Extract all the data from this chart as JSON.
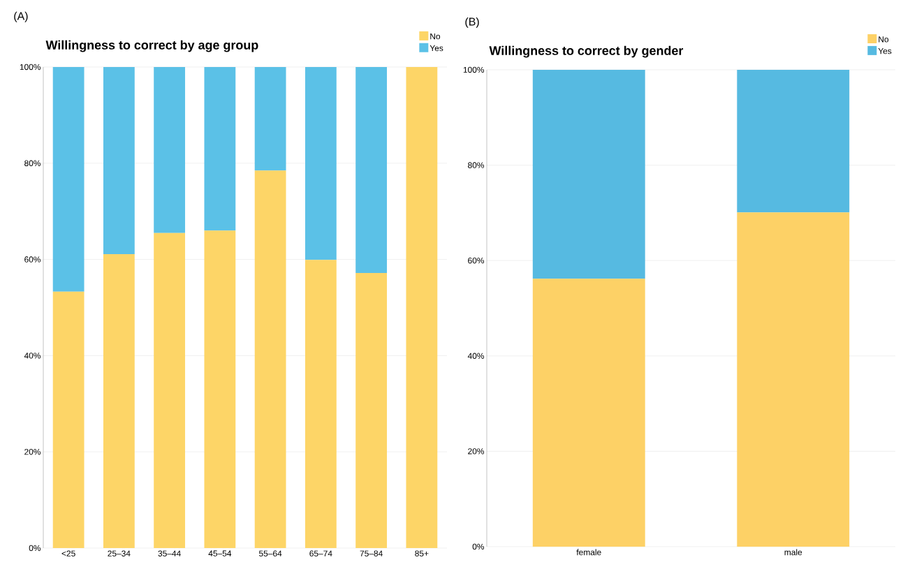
{
  "chart_data": [
    {
      "type": "bar",
      "title": "Willingness to correct by age group",
      "annotations": [
        "(A)"
      ],
      "categories": [
        "<25",
        "25–34",
        "35–44",
        "45–54",
        "55–64",
        "65–74",
        "75–84",
        "85+"
      ],
      "stacked": true,
      "series": [
        {
          "name": "No",
          "color": "#fdd567",
          "values": [
            53.3,
            61.1,
            65.5,
            66.0,
            78.5,
            59.9,
            57.2,
            100
          ]
        },
        {
          "name": "Yes",
          "color": "#5bc1e7",
          "values": [
            46.7,
            38.9,
            34.5,
            34.0,
            21.5,
            40.1,
            42.8,
            0
          ]
        }
      ],
      "ylim": [
        0,
        100
      ],
      "yticks": [
        {
          "value": 0,
          "label": "0%"
        },
        {
          "value": 20,
          "label": "20%"
        },
        {
          "value": 40,
          "label": "40%"
        },
        {
          "value": 60,
          "label": "60%"
        },
        {
          "value": 80,
          "label": "80%"
        },
        {
          "value": 100,
          "label": "100%"
        }
      ],
      "grid": "y",
      "legend": "top right"
    },
    {
      "type": "bar",
      "title": "Willingness to correct by gender",
      "annotations": [
        "(B)"
      ],
      "categories": [
        "female",
        "male"
      ],
      "stacked": true,
      "series": [
        {
          "name": "No",
          "color": "#fdd166",
          "values": [
            56.2,
            70.1
          ]
        },
        {
          "name": "Yes",
          "color": "#56bae1",
          "values": [
            43.8,
            29.9
          ]
        }
      ],
      "ylim": [
        0,
        100
      ],
      "yticks": [
        {
          "value": 0,
          "label": "0%"
        },
        {
          "value": 20,
          "label": "20%"
        },
        {
          "value": 40,
          "label": "40%"
        },
        {
          "value": 60,
          "label": "60%"
        },
        {
          "value": 80,
          "label": "80%"
        },
        {
          "value": 100,
          "label": "100%"
        }
      ],
      "grid": "y",
      "legend": "top right"
    }
  ]
}
